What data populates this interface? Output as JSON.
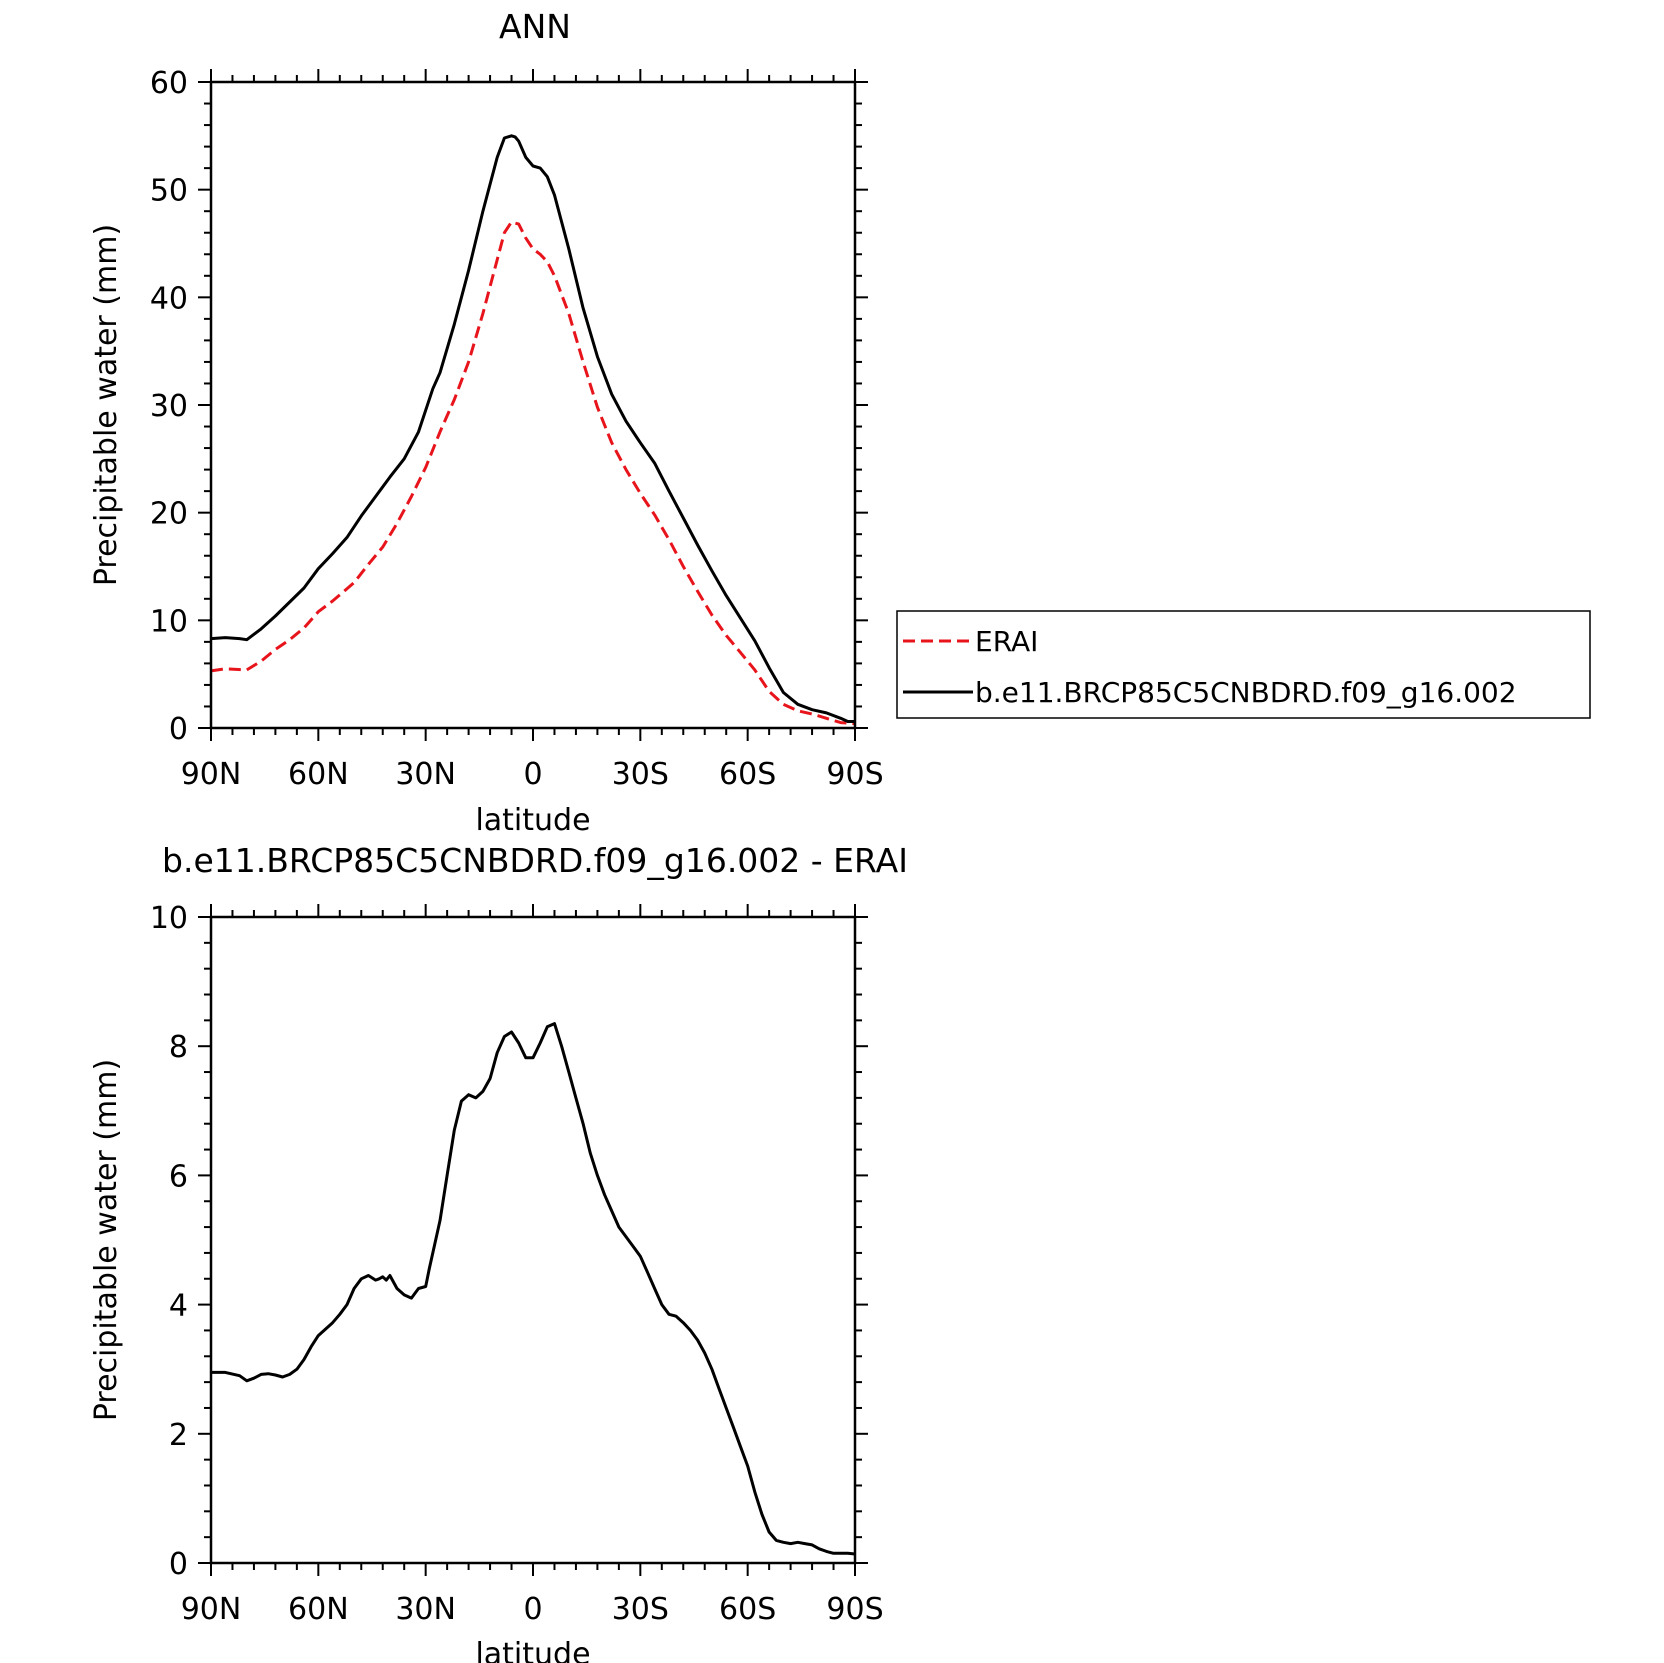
{
  "chart_data": [
    {
      "type": "line",
      "title": "ANN",
      "xlabel": "latitude",
      "ylabel": "Precipitable water (mm)",
      "x_ticks": [
        "90N",
        "60N",
        "30N",
        "0",
        "30S",
        "60S",
        "90S"
      ],
      "x_tick_values": [
        90,
        60,
        30,
        0,
        -30,
        -60,
        -90
      ],
      "xlim": [
        90,
        -90
      ],
      "y_ticks": [
        "0",
        "10",
        "20",
        "30",
        "40",
        "50",
        "60"
      ],
      "ylim": [
        0,
        60
      ],
      "grid": false,
      "legend_placement": "outside-right",
      "series": [
        {
          "name": "ERAI",
          "color": "#e8141c",
          "dash": "dashed",
          "x": [
            90,
            86,
            80,
            76,
            72,
            68,
            64,
            60,
            56,
            50,
            46,
            42,
            38,
            34,
            30,
            26,
            22,
            18,
            14,
            10,
            8,
            6,
            4,
            2,
            0,
            -2,
            -4,
            -6,
            -10,
            -14,
            -18,
            -22,
            -26,
            -30,
            -34,
            -38,
            -42,
            -46,
            -50,
            -54,
            -58,
            -62,
            -66,
            -70,
            -74,
            -78,
            -82,
            -86,
            -90
          ],
          "y": [
            5.3,
            5.5,
            5.4,
            6.2,
            7.3,
            8.2,
            9.3,
            10.8,
            11.8,
            13.5,
            15.2,
            16.8,
            19.0,
            21.5,
            24.2,
            27.5,
            30.5,
            34.0,
            38.5,
            43.5,
            46.0,
            47.0,
            46.8,
            45.5,
            44.5,
            44.0,
            43.3,
            42.0,
            38.5,
            34.0,
            29.8,
            26.5,
            24.0,
            21.8,
            19.8,
            17.5,
            15.0,
            12.7,
            10.5,
            8.6,
            7.0,
            5.4,
            3.4,
            2.2,
            1.6,
            1.3,
            0.9,
            0.5,
            0.4
          ]
        },
        {
          "name": "b.e11.BRCP85C5CNBDRD.f09_g16.002",
          "color": "#000000",
          "dash": "solid",
          "x": [
            90,
            86,
            82,
            80,
            76,
            72,
            68,
            64,
            60,
            56,
            52,
            48,
            44,
            40,
            36,
            32,
            28,
            26,
            22,
            18,
            14,
            10,
            8,
            6,
            5,
            4,
            2,
            0,
            -2,
            -4,
            -6,
            -10,
            -14,
            -18,
            -22,
            -26,
            -30,
            -34,
            -38,
            -42,
            -46,
            -50,
            -54,
            -58,
            -62,
            -66,
            -70,
            -74,
            -78,
            -82,
            -86,
            -88,
            -90
          ],
          "y": [
            8.3,
            8.4,
            8.3,
            8.2,
            9.2,
            10.4,
            11.7,
            13.0,
            14.8,
            16.2,
            17.7,
            19.7,
            21.5,
            23.3,
            25.0,
            27.5,
            31.5,
            33.0,
            37.5,
            42.5,
            48.0,
            53.0,
            54.8,
            55.0,
            54.9,
            54.5,
            53.0,
            52.2,
            52.0,
            51.2,
            49.5,
            44.5,
            39.0,
            34.5,
            31.0,
            28.5,
            26.5,
            24.6,
            22.0,
            19.5,
            17.0,
            14.6,
            12.3,
            10.2,
            8.1,
            5.6,
            3.3,
            2.2,
            1.7,
            1.4,
            0.9,
            0.6,
            0.6
          ]
        }
      ]
    },
    {
      "type": "line",
      "title": "b.e11.BRCP85C5CNBDRD.f09_g16.002 - ERAI",
      "xlabel": "latitude",
      "ylabel": "Precipitable water (mm)",
      "x_ticks": [
        "90N",
        "60N",
        "30N",
        "0",
        "30S",
        "60S",
        "90S"
      ],
      "x_tick_values": [
        90,
        60,
        30,
        0,
        -30,
        -60,
        -90
      ],
      "xlim": [
        90,
        -90
      ],
      "y_ticks": [
        "0",
        "2",
        "4",
        "6",
        "8",
        "10"
      ],
      "ylim": [
        0,
        10
      ],
      "grid": false,
      "series": [
        {
          "color": "#000000",
          "dash": "solid",
          "x": [
            90,
            86,
            82,
            80,
            78,
            76,
            74,
            72,
            70,
            68,
            66,
            64,
            62,
            60,
            58,
            56,
            54,
            52,
            50,
            48,
            46,
            44,
            43,
            42,
            41,
            40,
            38,
            36,
            34,
            32,
            30,
            29,
            28,
            26,
            24,
            22,
            20,
            18,
            16,
            14,
            12,
            10,
            8,
            6,
            4,
            2,
            0,
            -2,
            -4,
            -6,
            -8,
            -10,
            -12,
            -14,
            -16,
            -18,
            -20,
            -22,
            -24,
            -26,
            -28,
            -30,
            -32,
            -34,
            -36,
            -38,
            -40,
            -42,
            -44,
            -46,
            -48,
            -50,
            -52,
            -54,
            -56,
            -58,
            -60,
            -62,
            -64,
            -66,
            -68,
            -70,
            -72,
            -74,
            -76,
            -78,
            -80,
            -82,
            -84,
            -86,
            -88,
            -90
          ],
          "y": [
            2.95,
            2.95,
            2.9,
            2.82,
            2.86,
            2.92,
            2.93,
            2.91,
            2.88,
            2.92,
            3.0,
            3.15,
            3.35,
            3.52,
            3.62,
            3.72,
            3.85,
            4.0,
            4.25,
            4.4,
            4.45,
            4.38,
            4.4,
            4.43,
            4.38,
            4.45,
            4.25,
            4.15,
            4.1,
            4.25,
            4.28,
            4.55,
            4.8,
            5.3,
            6.0,
            6.7,
            7.15,
            7.25,
            7.2,
            7.3,
            7.5,
            7.9,
            8.15,
            8.22,
            8.05,
            7.82,
            7.82,
            8.05,
            8.3,
            8.35,
            8.0,
            7.6,
            7.2,
            6.8,
            6.35,
            6.0,
            5.7,
            5.45,
            5.2,
            5.05,
            4.9,
            4.75,
            4.5,
            4.25,
            4.0,
            3.85,
            3.82,
            3.72,
            3.6,
            3.45,
            3.25,
            3.0,
            2.7,
            2.4,
            2.1,
            1.8,
            1.5,
            1.1,
            0.75,
            0.48,
            0.35,
            0.32,
            0.3,
            0.32,
            0.3,
            0.28,
            0.22,
            0.18,
            0.15,
            0.15,
            0.15,
            0.14
          ]
        }
      ]
    }
  ]
}
